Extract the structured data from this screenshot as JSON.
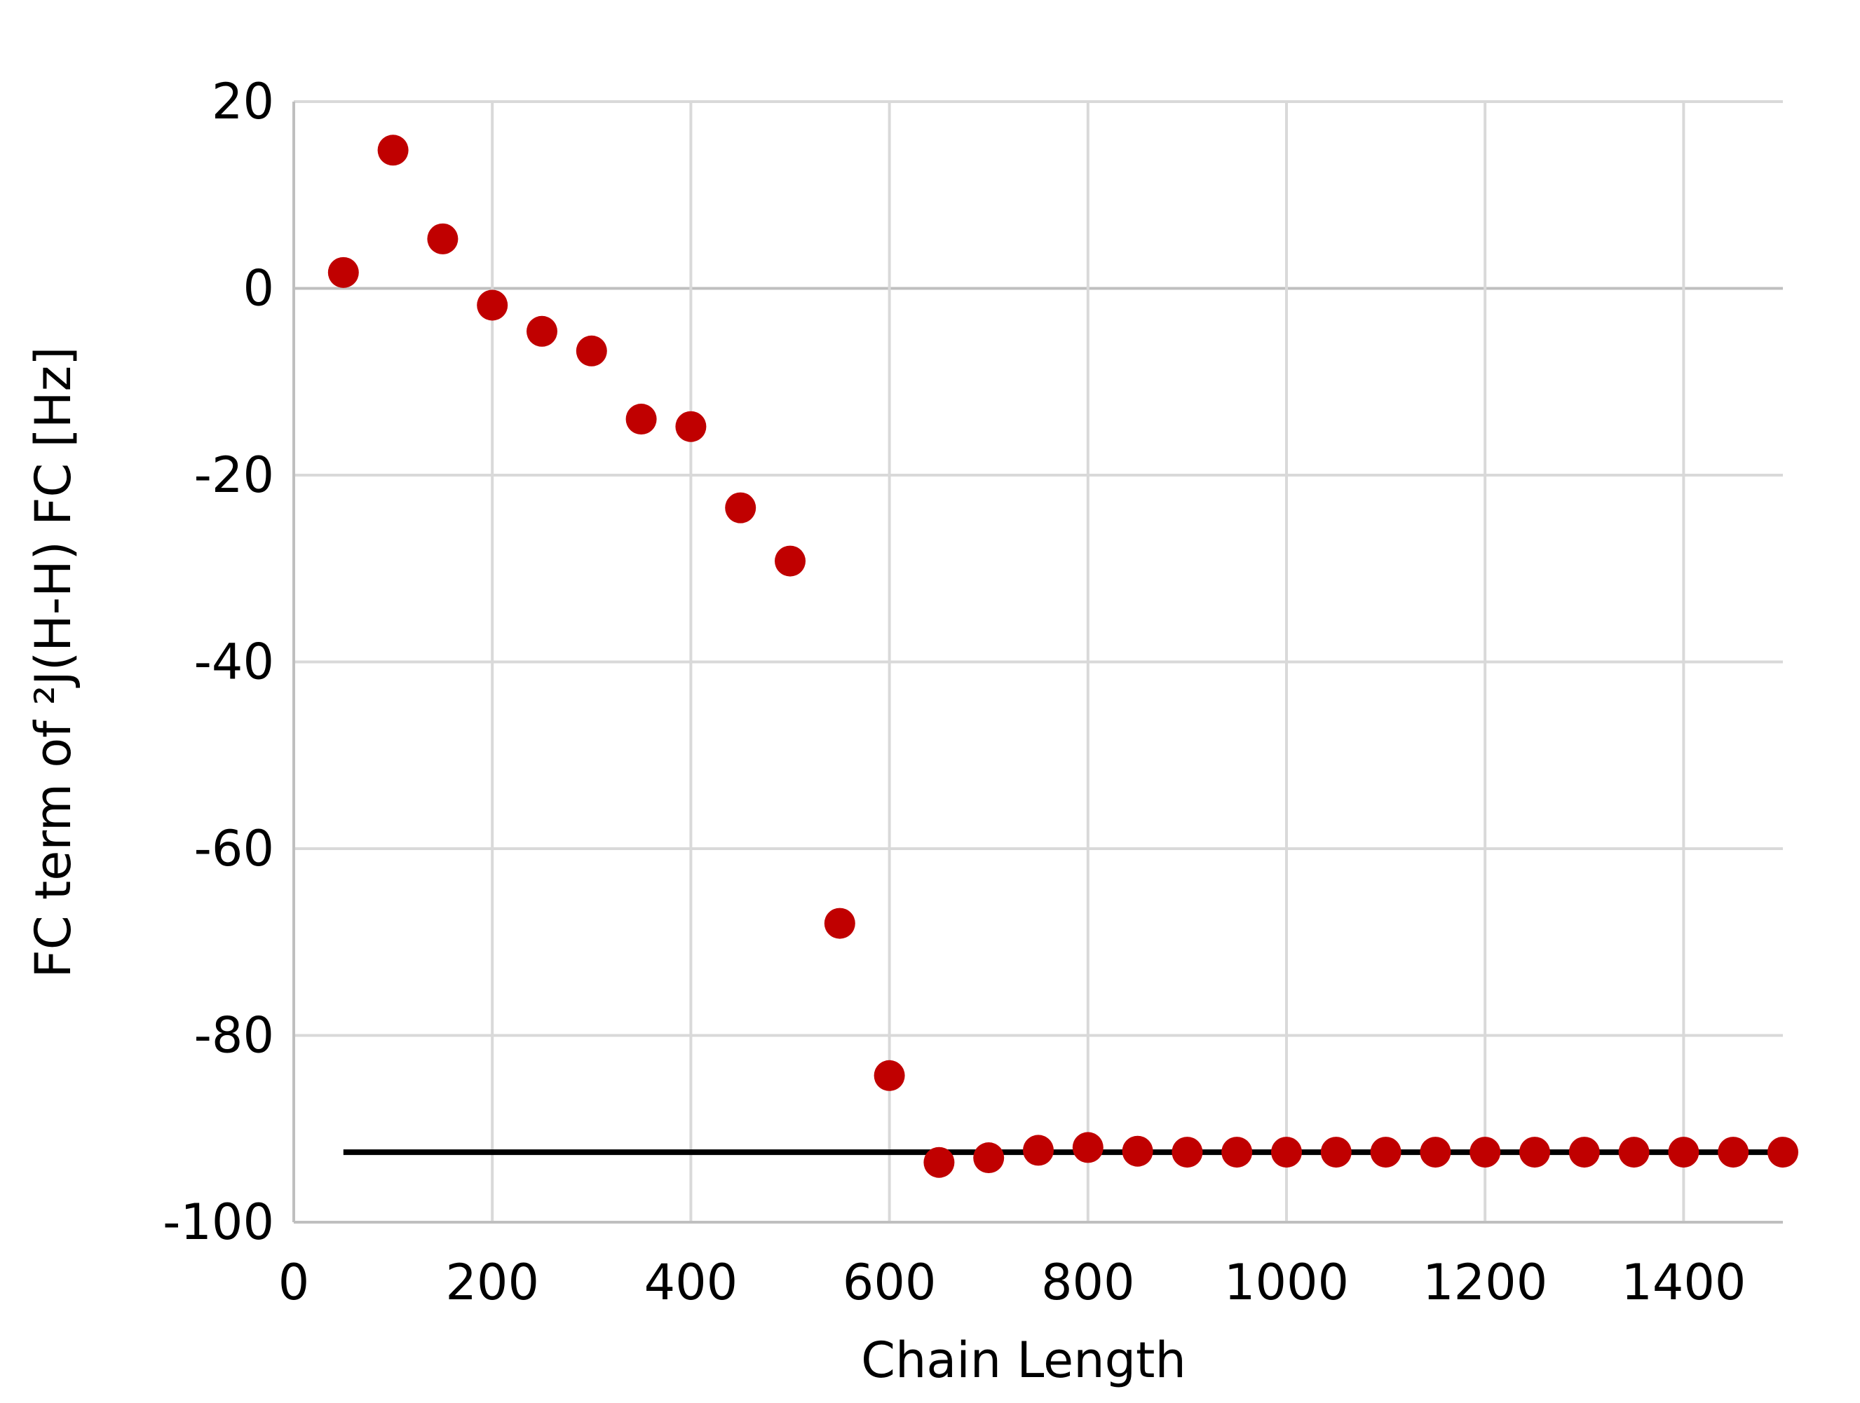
{
  "chart_data": {
    "type": "scatter",
    "x_label": "Chain Length",
    "y_label": "FC term of ²J(H-H) FC [Hz]",
    "x": [
      50,
      100,
      150,
      200,
      250,
      300,
      350,
      400,
      450,
      500,
      550,
      600,
      650,
      700,
      750,
      800,
      850,
      900,
      950,
      1000,
      1050,
      1100,
      1150,
      1200,
      1250,
      1300,
      1350,
      1400,
      1450,
      1500
    ],
    "series": [
      {
        "name": "FC term",
        "color": "#c00000",
        "values": [
          1.7,
          14.8,
          5.3,
          -1.8,
          -4.6,
          -6.7,
          -14.0,
          -14.8,
          -23.5,
          -29.2,
          -68.0,
          -84.3,
          -93.6,
          -93.1,
          -92.3,
          -92.0,
          -92.4,
          -92.5,
          -92.5,
          -92.5,
          -92.5,
          -92.5,
          -92.5,
          -92.5,
          -92.5,
          -92.5,
          -92.5,
          -92.5,
          -92.5,
          -92.5
        ]
      }
    ],
    "reference_line": {
      "y": -92.5,
      "x": [
        50,
        1500
      ],
      "color": "#000000"
    },
    "xlim": [
      0,
      1500
    ],
    "xticks": [
      0,
      200,
      400,
      600,
      800,
      1000,
      1200,
      1400
    ],
    "ylim": [
      -100,
      20
    ],
    "yticks": [
      -100,
      -80,
      -60,
      -40,
      -20,
      0,
      20
    ],
    "grid": true
  }
}
